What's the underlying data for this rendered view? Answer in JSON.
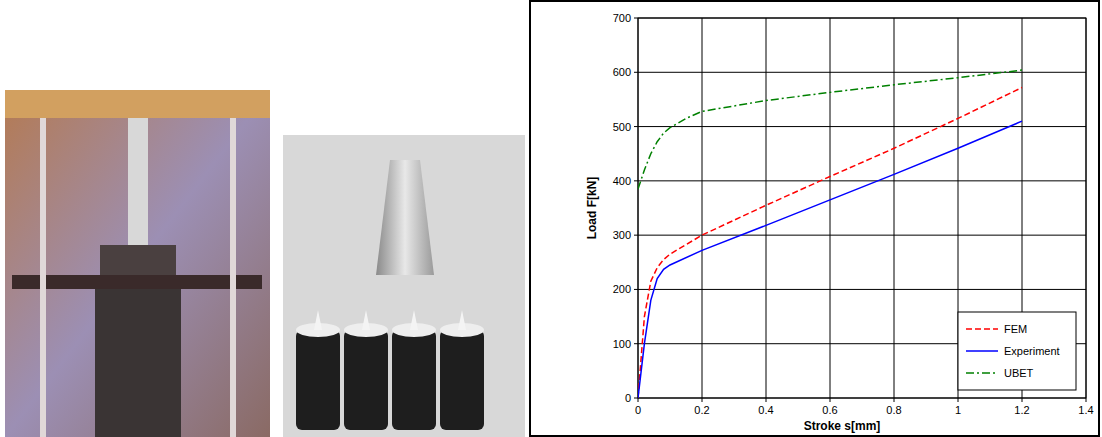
{
  "chart_data": {
    "type": "line",
    "x_label": "Stroke s[mm]",
    "y_label": "Load F[kN]",
    "xlim": [
      0,
      1.4
    ],
    "xticks": [
      0,
      0.2,
      0.4,
      0.6,
      0.8,
      1,
      1.2,
      1.4
    ],
    "ylim": [
      0,
      700
    ],
    "yticks": [
      0,
      100,
      200,
      300,
      400,
      500,
      600,
      700
    ],
    "grid": true,
    "legend": "lower right",
    "series": [
      {
        "name": "FEM",
        "color": "#ff0000",
        "line_style": "dashed",
        "x": [
          0,
          0.02,
          0.04,
          0.06,
          0.08,
          0.1,
          0.2,
          0.4,
          0.6,
          0.8,
          1.0,
          1.2
        ],
        "values": [
          0,
          150,
          215,
          240,
          255,
          265,
          300,
          355,
          408,
          460,
          515,
          572
        ]
      },
      {
        "name": "Experiment",
        "color": "#0000ff",
        "line_style": "solid",
        "x": [
          0,
          0.02,
          0.04,
          0.06,
          0.08,
          0.1,
          0.2,
          0.4,
          0.6,
          0.8,
          1.0,
          1.2
        ],
        "values": [
          0,
          100,
          180,
          220,
          237,
          245,
          272,
          318,
          365,
          412,
          460,
          510
        ]
      },
      {
        "name": "UBET",
        "color": "#008000",
        "line_style": "dashdot",
        "x": [
          0,
          0.02,
          0.04,
          0.06,
          0.08,
          0.1,
          0.15,
          0.2,
          0.4,
          0.6,
          0.8,
          1.0,
          1.2
        ],
        "values": [
          385,
          420,
          450,
          472,
          488,
          498,
          515,
          528,
          548,
          563,
          577,
          590,
          604
        ]
      }
    ]
  }
}
